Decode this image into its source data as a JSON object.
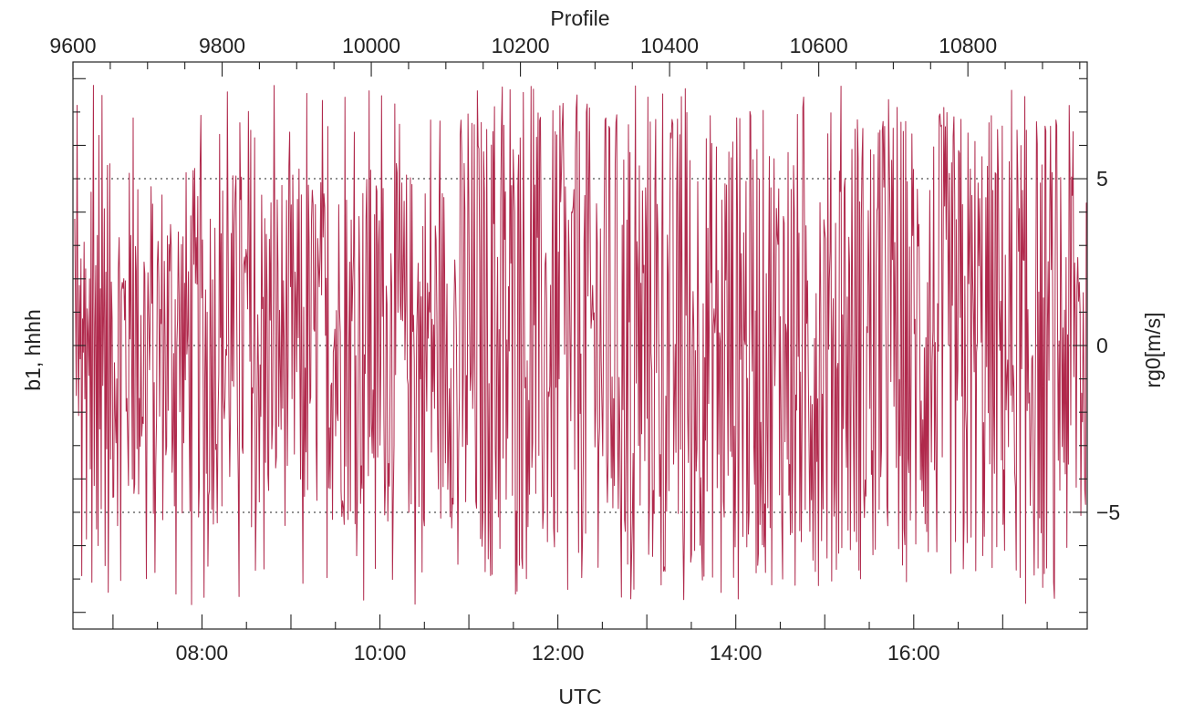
{
  "chart_data": {
    "type": "line",
    "title": "",
    "top_axis": {
      "label": "Profile",
      "range": [
        9600,
        10960
      ],
      "ticks": [
        9600,
        9800,
        10000,
        10200,
        10400,
        10600,
        10800
      ],
      "tick_labels": [
        "9600",
        "9800",
        "10000",
        "10200",
        "10400",
        "10600",
        "10800"
      ]
    },
    "x_axis": {
      "label": "UTC",
      "range_hours": [
        6.55,
        17.95
      ],
      "ticks_hours": [
        8,
        10,
        12,
        14,
        16
      ],
      "tick_labels": [
        "08:00",
        "10:00",
        "12:00",
        "14:00",
        "16:00"
      ]
    },
    "left_axis": {
      "label": "b1, hhhh"
    },
    "right_axis": {
      "label": "rg0[m/s]",
      "range": [
        -8.5,
        8.5
      ],
      "ticks": [
        -5,
        0,
        5
      ],
      "tick_labels": [
        "−5",
        "0",
        "5"
      ]
    },
    "reference_lines": [
      5,
      0,
      -5
    ],
    "grid": false,
    "series": [
      {
        "color": "#b0294c",
        "x_start_hours": 6.57,
        "x_end_hours": 17.94,
        "approx_points": 1300,
        "values_sample": [
          3.8,
          1.2,
          -1.5,
          7.2,
          0.6,
          -2.1,
          1.8,
          -0.4,
          2.6,
          -6.9,
          0.8,
          -0.2,
          3.1,
          -1.6,
          2.3,
          -5.8,
          1.1,
          0.4,
          -0.9,
          2.0,
          -3.7,
          4.6,
          -7.1,
          1.9,
          7.8,
          -4.2,
          0.6,
          2.4,
          -5.5,
          3.3,
          -6.0,
          6.3,
          -2.5,
          1.7,
          -4.9,
          7.5,
          -1.2,
          0.9,
          4.1,
          -6.6,
          2.2,
          -3.1,
          5.4,
          -7.4,
          1.6,
          -0.7,
          6.8,
          -2.9,
          3.6,
          -5.1
        ]
      }
    ]
  }
}
